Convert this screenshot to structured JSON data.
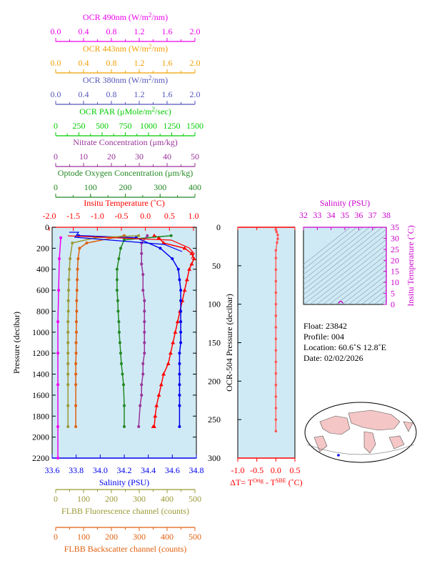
{
  "axes_top": [
    {
      "label_pre": "OCR 490nm (W/m",
      "label_sup": "2",
      "label_post": "/nm)",
      "ticks": [
        "0.0",
        "0.4",
        "0.8",
        "1.2",
        "1.6",
        "2.0"
      ],
      "color": "#ee00ee"
    },
    {
      "label_pre": "OCR 443nm (W/m",
      "label_sup": "2",
      "label_post": "/nm)",
      "ticks": [
        "0.0",
        "0.4",
        "0.8",
        "1.2",
        "1.6",
        "2.0"
      ],
      "color": "#f0a000"
    },
    {
      "label_pre": "OCR 380nm (W/m",
      "label_sup": "2",
      "label_post": "/nm)",
      "ticks": [
        "0.0",
        "0.4",
        "0.8",
        "1.2",
        "1.6",
        "2.0"
      ],
      "color": "#5555bb"
    },
    {
      "label_pre": "OCR PAR (μMole/m",
      "label_sup": "2",
      "label_post": "/sec)",
      "ticks": [
        "0",
        "250",
        "500",
        "750",
        "1000",
        "1250",
        "1500"
      ],
      "color": "#00cc00"
    },
    {
      "label_pre": "Nitrate Concentration (μm/kg)",
      "label_sup": "",
      "label_post": "",
      "ticks": [
        "0",
        "10",
        "20",
        "30",
        "40",
        "50"
      ],
      "color": "#993399"
    },
    {
      "label_pre": "Optode Oxygen Concentration (μm/kg)",
      "label_sup": "",
      "label_post": "",
      "ticks": [
        "0",
        "100",
        "200",
        "300",
        "400"
      ],
      "color": "#228822"
    },
    {
      "label_pre": "Insitu Temperature (",
      "label_sup": "",
      "label_post": "˚C)",
      "ticks": [
        "-2.0",
        "-1.5",
        "-1.0",
        "-0.5",
        "0.0",
        "0.5",
        "1.0"
      ],
      "color": "#ff0000"
    }
  ],
  "axes_bottom": [
    {
      "label": "FLBB Fluorescence channel (counts)",
      "ticks": [
        "0",
        "100",
        "200",
        "300",
        "400",
        "500"
      ],
      "color": "#999933"
    },
    {
      "label": "FLBB Backscatter channel (counts)",
      "ticks": [
        "0",
        "100",
        "200",
        "300",
        "400",
        "500"
      ],
      "color": "#e06010"
    }
  ],
  "main_panel": {
    "ylabel": "Pressure (decibar)",
    "yticks": [
      "0",
      "200",
      "400",
      "600",
      "800",
      "1000",
      "1200",
      "1400",
      "1600",
      "1800",
      "2000",
      "2200"
    ],
    "xlabel": "Salinity (PSU)",
    "xticks": [
      "33.6",
      "33.8",
      "34.0",
      "34.2",
      "34.4",
      "34.6",
      "34.8"
    ],
    "salinity_color": "#0000ee"
  },
  "ocr_panel": {
    "ylabel": "OCR-504 Pressure (decibar)",
    "yticks": [
      "0",
      "50",
      "100",
      "150",
      "200",
      "250",
      "300"
    ],
    "xticks": [
      "-1.0",
      "-0.5",
      "0.0",
      "0.5"
    ],
    "xlabel": "ΔT= T",
    "xlabel_sup1": "Orig",
    "xlabel_mid": " - T",
    "xlabel_sup2": "SBE",
    "xlabel_end": " (˚C)",
    "color": "#ff0000"
  },
  "ts_panel": {
    "title": "Salinity (PSU)",
    "xticks": [
      "32",
      "33",
      "34",
      "35",
      "36",
      "37",
      "38"
    ],
    "yticks": [
      "0",
      "5",
      "10",
      "15",
      "20",
      "25",
      "30",
      "35"
    ],
    "ylabel": "Insitu Temperature (˚C)",
    "color": "#cc00cc"
  },
  "info": {
    "float": "Float:  23842",
    "profile": "Profile:  004",
    "location": "Location:  60.6˚S  12.8˚E",
    "date": "Date:  02/02/2026"
  },
  "colors": {
    "panel_bg": "#cfeaf5",
    "red": "#ff0000",
    "blue": "#0000ee"
  },
  "chart_data": {
    "type": "line",
    "y_axis": "Pressure (decibar)",
    "ylim": [
      2200,
      0
    ],
    "series": [
      {
        "name": "Insitu Temperature",
        "unit": "˚C",
        "color": "#ff0000",
        "x": [
          0.1,
          0.2,
          0.3,
          0.75,
          0.9,
          0.95,
          0.9,
          0.85,
          0.8,
          0.75,
          0.7,
          0.65,
          0.6,
          0.55,
          0.5,
          0.45,
          0.4,
          0.3,
          0.25,
          0.2,
          0.15,
          0.12,
          0.1,
          0.08
        ],
        "y": [
          80,
          100,
          150,
          200,
          250,
          300,
          350,
          400,
          500,
          600,
          700,
          800,
          900,
          1000,
          1100,
          1200,
          1300,
          1400,
          1500,
          1600,
          1700,
          1800,
          1900,
          1900
        ]
      },
      {
        "name": "Salinity",
        "unit": "PSU",
        "color": "#0000ee",
        "x": [
          33.82,
          34.3,
          34.5,
          34.6,
          34.65,
          34.66,
          34.67,
          34.67,
          34.67,
          34.67,
          34.67,
          34.67,
          34.66,
          34.66,
          34.66,
          34.66,
          34.66,
          34.66,
          34.66
        ],
        "y": [
          80,
          100,
          200,
          300,
          400,
          500,
          600,
          700,
          800,
          900,
          1000,
          1100,
          1200,
          1300,
          1400,
          1500,
          1600,
          1700,
          1900
        ]
      },
      {
        "name": "Optode Oxygen",
        "unit": "μm/kg",
        "color": "#228822",
        "x": [
          330,
          200,
          190,
          185,
          180,
          180,
          180,
          182,
          183,
          185,
          186,
          188,
          190,
          192,
          195,
          198,
          200,
          200
        ],
        "y": [
          80,
          120,
          200,
          300,
          400,
          500,
          600,
          700,
          800,
          900,
          1000,
          1100,
          1200,
          1300,
          1400,
          1500,
          1700,
          1900
        ]
      },
      {
        "name": "Nitrate Concentration",
        "unit": "μm/kg",
        "color": "#993399",
        "x": [
          33,
          31,
          31,
          31,
          31.5,
          31.5,
          32,
          32,
          32,
          32,
          32,
          32,
          31.5,
          31.5,
          31,
          31,
          30.5,
          30
        ],
        "y": [
          80,
          150,
          250,
          350,
          450,
          600,
          700,
          800,
          900,
          1000,
          1100,
          1200,
          1300,
          1400,
          1500,
          1600,
          1700,
          1900
        ]
      },
      {
        "name": "FLBB Backscatter",
        "unit": "counts",
        "color": "#e06010",
        "x": [
          250,
          120,
          95,
          90,
          88,
          87,
          86,
          85,
          85,
          84,
          84,
          83,
          83,
          82,
          82,
          82,
          82,
          82
        ],
        "y": [
          80,
          150,
          200,
          300,
          400,
          500,
          600,
          700,
          800,
          900,
          1000,
          1100,
          1200,
          1300,
          1400,
          1500,
          1700,
          1900
        ]
      },
      {
        "name": "FLBB Fluorescence",
        "unit": "counts",
        "color": "#999933",
        "x": [
          300,
          150,
          70,
          62,
          60,
          58,
          57,
          56,
          56,
          55,
          55,
          55,
          55,
          55,
          55,
          55,
          55,
          55
        ],
        "y": [
          80,
          100,
          150,
          300,
          400,
          500,
          600,
          700,
          800,
          900,
          1000,
          1100,
          1200,
          1300,
          1400,
          1500,
          1700,
          1900
        ]
      },
      {
        "name": "OCR 490nm",
        "unit": "W/m2/nm",
        "color": "#ee00ee",
        "x": [
          0.12,
          0.1,
          0.09,
          0.08,
          0.08,
          0.08,
          0.08,
          0.08
        ],
        "y": [
          100,
          300,
          600,
          900,
          1200,
          1500,
          1900,
          2200
        ]
      }
    ],
    "delta_t": {
      "x": [
        0.0,
        0.02,
        0.05,
        0.05,
        0.03,
        0.0,
        0.0,
        0.0,
        0.0,
        0.0,
        0.0,
        0.0,
        0.0,
        0.0,
        0.0,
        0.0,
        0.0,
        0.0,
        0.0,
        0.0,
        0.0,
        0.0
      ],
      "y": [
        3,
        6,
        10,
        15,
        20,
        30,
        40,
        55,
        70,
        85,
        100,
        115,
        130,
        145,
        160,
        175,
        190,
        205,
        220,
        235,
        250,
        265
      ]
    },
    "ts": {
      "xlim": [
        32,
        38
      ],
      "ylim": [
        0,
        35
      ],
      "point": {
        "salinity": 34.7,
        "temperature": 0.5
      }
    }
  }
}
